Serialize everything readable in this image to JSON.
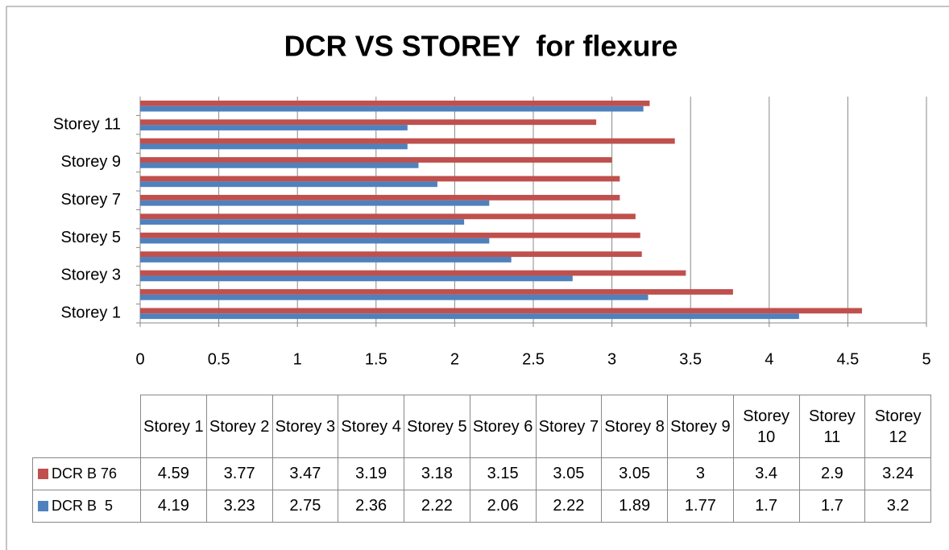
{
  "chart_data": {
    "type": "bar",
    "orientation": "horizontal",
    "title": "DCR VS STOREY  for flexure",
    "categories": [
      "Storey 1",
      "Storey 2",
      "Storey 3",
      "Storey 4",
      "Storey 5",
      "Storey 6",
      "Storey 7",
      "Storey 8",
      "Storey 9",
      "Storey 10",
      "Storey 11",
      "Storey 12"
    ],
    "series": [
      {
        "name": "DCR B 76",
        "color": "#c0504d",
        "values": [
          4.59,
          3.77,
          3.47,
          3.19,
          3.18,
          3.15,
          3.05,
          3.05,
          3,
          3.4,
          2.9,
          3.24
        ]
      },
      {
        "name": "DCR B  5",
        "color": "#4f81bd",
        "values": [
          4.19,
          3.23,
          2.75,
          2.36,
          2.22,
          2.06,
          2.22,
          1.89,
          1.77,
          1.7,
          1.7,
          3.2
        ]
      }
    ],
    "xlim": [
      0,
      5
    ],
    "xticks": [
      0,
      0.5,
      1,
      1.5,
      2,
      2.5,
      3,
      3.5,
      4,
      4.5,
      5
    ],
    "grid": true
  }
}
